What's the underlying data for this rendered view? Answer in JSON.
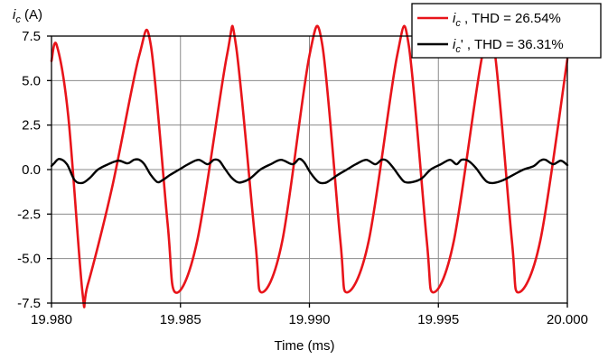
{
  "chart_data": {
    "type": "line",
    "xlabel": "Time (ms)",
    "ylabel_symbol": "i",
    "ylabel_subscript": "c",
    "ylabel_unit": " (A)",
    "xlim": [
      19.98,
      20.0
    ],
    "ylim": [
      -7.5,
      7.5
    ],
    "x_ticks": [
      19.98,
      19.985,
      19.99,
      19.995,
      20.0
    ],
    "x_tick_labels": [
      "19.980",
      "19.985",
      "19.990",
      "19.995",
      "20.000"
    ],
    "y_ticks": [
      7.5,
      5.0,
      2.5,
      0.0,
      -2.5,
      -5.0,
      -7.5
    ],
    "y_tick_labels": [
      "7.5",
      "5.0",
      "2.5",
      "0.0",
      "-2.5",
      "-5.0",
      "-7.5"
    ],
    "grid": true,
    "legend_position": "top-right",
    "series": [
      {
        "name": "ic",
        "legend_symbol": "i",
        "legend_subscript": "c",
        "legend_prime": "",
        "legend_rest": " , THD = 26.54%",
        "color": "#e8141a",
        "x": [
          19.98,
          19.9802,
          19.98065,
          19.9812,
          19.9814,
          19.98235,
          19.9834,
          19.98385,
          19.9845,
          19.9848,
          19.98565,
          19.9868,
          19.98715,
          19.9879,
          19.98815,
          19.98895,
          19.99,
          19.9905,
          19.9912,
          19.99145,
          19.9923,
          19.9934,
          19.99385,
          19.99455,
          19.9948,
          19.9956,
          19.9967,
          19.99715,
          19.99785,
          19.9981,
          19.99895,
          20.0
        ],
        "y": [
          6.1,
          7.0,
          3.0,
          -6.9,
          -6.5,
          -1.0,
          6.4,
          7.0,
          -3.0,
          -6.9,
          -4.0,
          6.4,
          7.0,
          -4.0,
          -6.9,
          -4.0,
          6.4,
          7.0,
          -4.0,
          -6.9,
          -4.0,
          6.4,
          7.0,
          -4.0,
          -6.9,
          -4.0,
          6.4,
          7.0,
          -4.0,
          -6.9,
          -4.0,
          6.2
        ]
      },
      {
        "name": "ic'",
        "legend_symbol": "i",
        "legend_subscript": "c",
        "legend_prime": "'",
        "legend_rest": " , THD = 36.31%",
        "color": "#000000",
        "x": [
          19.98,
          19.9801,
          19.9803,
          19.9806,
          19.9809,
          19.9812,
          19.9815,
          19.9818,
          19.9822,
          19.9826,
          19.98295,
          19.9832,
          19.9834,
          19.9836,
          19.98385,
          19.9841,
          19.9843,
          19.9846,
          19.98495,
          19.9853,
          19.9857,
          19.98605,
          19.9863,
          19.9865,
          19.9867,
          19.98695,
          19.9872,
          19.9874,
          19.9877,
          19.9881,
          19.9885,
          19.9889,
          19.98935,
          19.9896,
          19.9898,
          19.99005,
          19.99035,
          19.9906,
          19.9908,
          19.9911,
          19.99145,
          19.9918,
          19.9922,
          19.99255,
          19.9928,
          19.993,
          19.99325,
          19.9935,
          19.9937,
          19.994,
          19.99435,
          19.9947,
          19.9951,
          19.99545,
          19.9957,
          19.9959,
          19.99615,
          19.99645,
          19.9967,
          19.9969,
          19.99715,
          19.9975,
          19.9979,
          19.9983,
          19.9987,
          19.99895,
          19.99915,
          19.99945,
          19.99975,
          20.0
        ],
        "y": [
          0.2,
          0.35,
          0.6,
          0.3,
          -0.6,
          -0.75,
          -0.45,
          0.0,
          0.3,
          0.5,
          0.35,
          0.55,
          0.55,
          0.3,
          -0.3,
          -0.7,
          -0.6,
          -0.3,
          0.0,
          0.3,
          0.55,
          0.3,
          0.55,
          0.5,
          0.1,
          -0.4,
          -0.7,
          -0.7,
          -0.5,
          0.0,
          0.3,
          0.55,
          0.3,
          0.6,
          0.4,
          -0.2,
          -0.7,
          -0.75,
          -0.6,
          -0.3,
          0.0,
          0.3,
          0.55,
          0.3,
          0.55,
          0.5,
          0.1,
          -0.4,
          -0.7,
          -0.7,
          -0.5,
          0.0,
          0.3,
          0.55,
          0.3,
          0.55,
          0.5,
          0.1,
          -0.4,
          -0.7,
          -0.75,
          -0.6,
          -0.3,
          0.0,
          0.2,
          0.5,
          0.55,
          0.3,
          0.5,
          0.25
        ]
      }
    ]
  }
}
